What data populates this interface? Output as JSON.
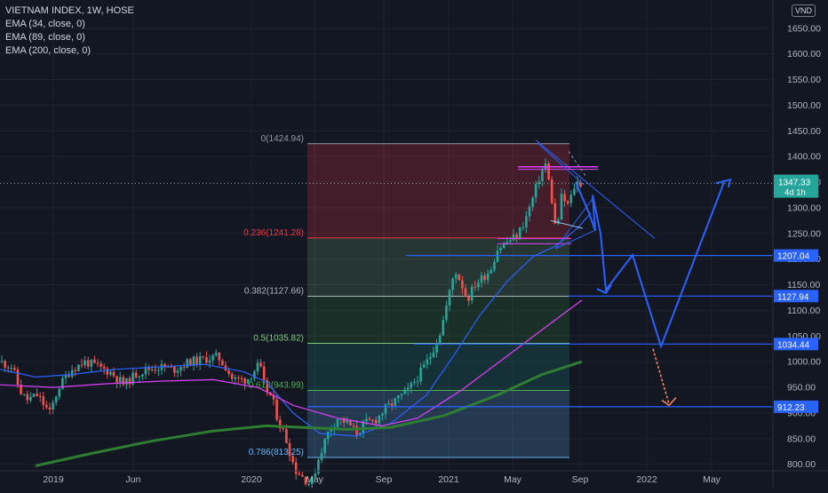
{
  "legend": {
    "title": "VIETNAM INDEX, 1W, HOSE",
    "ema1": "EMA (34, close, 0)",
    "ema2": "EMA (89, close, 0)",
    "ema3": "EMA (200, close, 0)"
  },
  "currency": "VND",
  "chart_data": {
    "type": "candlestick",
    "symbol": "VIETNAM INDEX",
    "interval": "1W",
    "exchange": "HOSE",
    "y_ticks": [
      800,
      850,
      900,
      950,
      1000,
      1050,
      1100,
      1150,
      1200,
      1250,
      1300,
      1350,
      1400,
      1450,
      1500,
      1550,
      1600,
      1650
    ],
    "y_tick_labels": [
      "800.00",
      "850.00",
      "900.00",
      "950.00",
      "1000.00",
      "1050.00",
      "1100.00",
      "1150.00",
      "1200.00",
      "1250.00",
      "1300.00",
      "1350.00",
      "1400.00",
      "1450.00",
      "1500.00",
      "1550.00",
      "1600.00",
      "1650.00"
    ],
    "ylim": [
      796,
      1686
    ],
    "x_labels": [
      "2019",
      "Jun",
      "2020",
      "May",
      "Sep",
      "2021",
      "May",
      "Sep",
      "2022",
      "May"
    ],
    "current_price": {
      "value": 1347.33,
      "label": "1347.33",
      "countdown": "4d 1h"
    },
    "price_tags": [
      {
        "label": "1207.04",
        "value": 1207.04
      },
      {
        "label": "1127.94",
        "value": 1127.94
      },
      {
        "label": "1034.44",
        "value": 1034.44
      },
      {
        "label": "912.23",
        "value": 912.23
      }
    ],
    "fibonacci": [
      {
        "label": "0(1424.94)",
        "value": 1424.94,
        "color": "#9598a1"
      },
      {
        "label": "0.236(1241.28)",
        "value": 1241.28,
        "color": "#f23645"
      },
      {
        "label": "0.382(1127.66)",
        "value": 1127.66,
        "color": "#b2b5be"
      },
      {
        "label": "0.5(1035.82)",
        "value": 1035.82,
        "color": "#81c784"
      },
      {
        "label": "0.618(943.99)",
        "value": 943.99,
        "color": "#4caf50"
      },
      {
        "label": "0.786(813.25)",
        "value": 813.25,
        "color": "#64b5f6"
      }
    ],
    "colors": {
      "up": "#26a69a",
      "down": "#ef5350",
      "ema34": "#2962ff",
      "ema89": "#e040fb",
      "ema200": "#2e7d32",
      "projection": "#2962ff",
      "background": "#131722"
    }
  }
}
